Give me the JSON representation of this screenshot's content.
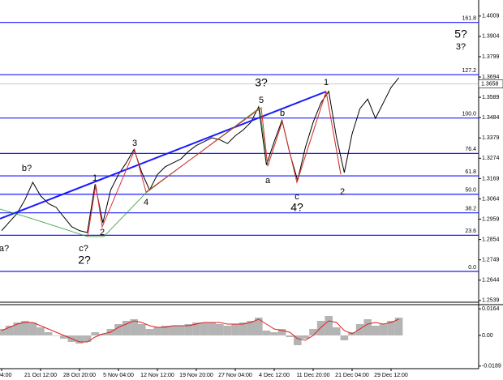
{
  "chart_data": [
    {
      "type": "line",
      "color": "#000000",
      "categories": [
        "ct 04:00",
        null,
        null,
        null,
        null,
        "21 Oct 12:00",
        null,
        null,
        null,
        null,
        "28 Oct 20:00",
        null,
        null,
        null,
        null,
        "5 Nov 04:00",
        null,
        null,
        null,
        null,
        "12 Nov 12:00",
        null,
        null,
        null,
        null,
        "19 Nov 20:00",
        null,
        null,
        null,
        null,
        "27 Nov 04:00",
        null,
        null,
        null,
        null,
        "4 Dec 12:00",
        null,
        null,
        null,
        null,
        "11 Dec 20:00",
        null,
        null,
        null,
        null,
        "21 Dec 04:00",
        null,
        null,
        null,
        null,
        "29 Dec 12:00",
        null
      ],
      "values": [
        1.29,
        1.2945,
        1.299,
        1.306,
        1.315,
        1.308,
        1.304,
        1.302,
        1.297,
        1.292,
        1.29,
        1.289,
        1.314,
        1.294,
        1.311,
        1.319,
        1.325,
        1.332,
        1.32,
        1.311,
        1.319,
        1.323,
        1.325,
        1.327,
        1.331,
        1.334,
        1.336,
        1.338,
        1.337,
        1.335,
        1.339,
        1.342,
        1.346,
        1.354,
        1.324,
        1.336,
        1.347,
        1.33,
        1.316,
        1.333,
        1.346,
        1.356,
        1.362,
        1.338,
        1.32,
        1.34,
        1.353,
        1.358,
        1.348,
        1.356,
        1.364,
        1.369
      ],
      "ylim": [
        1.253,
        1.4092
      ],
      "yticks": [
        1.4009,
        1.3904,
        1.3799,
        1.3694,
        1.3589,
        1.3484,
        1.3379,
        1.3274,
        1.3169,
        1.3064,
        1.2959,
        1.2854,
        1.2749,
        1.2644,
        1.2539
      ],
      "current_price": 1.3658,
      "levels": [
        {
          "label": "161.8",
          "value": 1.3976
        },
        {
          "label": "127.2",
          "value": 1.3706
        },
        {
          "label": "100.0",
          "value": 1.3482
        },
        {
          "label": "76.4",
          "value": 1.3299
        },
        {
          "label": "61.8",
          "value": 1.3183
        },
        {
          "label": "50.0",
          "value": 1.3088
        },
        {
          "label": "38.2",
          "value": 1.2992
        },
        {
          "label": "23.6",
          "value": 1.2876
        },
        {
          "label": "0.0",
          "value": 1.2689
        }
      ],
      "annotations": [
        {
          "text": "a?",
          "color": "#e03030"
        },
        {
          "text": "b?",
          "color": "#e03030"
        },
        {
          "text": "c?",
          "color": "#e03030"
        },
        {
          "text": "2?",
          "color": "#2a9a2a"
        },
        {
          "text": "1",
          "color": "#e03030"
        },
        {
          "text": "2",
          "color": "#e03030"
        },
        {
          "text": "3",
          "color": "#e03030"
        },
        {
          "text": "4",
          "color": "#e03030"
        },
        {
          "text": "5",
          "color": "#e03030"
        },
        {
          "text": "3?",
          "color": "#2a9a2a"
        },
        {
          "text": "b",
          "color": "#e03030"
        },
        {
          "text": "a",
          "color": "#e03030"
        },
        {
          "text": "c",
          "color": "#e03030"
        },
        {
          "text": "4?",
          "color": "#2a9a2a"
        },
        {
          "text": "1",
          "color": "#e03030"
        },
        {
          "text": "2",
          "color": "#e03030"
        },
        {
          "text": "5?",
          "color": "#2a9a2a"
        },
        {
          "text": "3?",
          "color": "#e03030"
        }
      ]
    },
    {
      "type": "bar",
      "color": "#b4b4b4",
      "values": [
        0.004,
        0.006,
        0.008,
        0.009,
        0.008,
        0.005,
        0.002,
        0.0,
        -0.002,
        -0.004,
        -0.005,
        -0.004,
        0.002,
        0.001,
        0.004,
        0.007,
        0.009,
        0.01,
        0.007,
        0.004,
        0.005,
        0.006,
        0.006,
        0.006,
        0.007,
        0.008,
        0.008,
        0.008,
        0.007,
        0.006,
        0.007,
        0.008,
        0.009,
        0.011,
        0.003,
        0.002,
        0.004,
        -0.001,
        -0.006,
        -0.002,
        0.004,
        0.009,
        0.012,
        0.005,
        -0.003,
        0.002,
        0.007,
        0.01,
        0.006,
        0.007,
        0.009,
        0.011
      ],
      "signal": {
        "color": "#e02020",
        "values": [
          0.003,
          0.005,
          0.007,
          0.008,
          0.008,
          0.006,
          0.004,
          0.002,
          0.0,
          -0.002,
          -0.004,
          -0.004,
          -0.001,
          0.001,
          0.002,
          0.005,
          0.007,
          0.009,
          0.008,
          0.006,
          0.005,
          0.005,
          0.006,
          0.006,
          0.006,
          0.007,
          0.008,
          0.008,
          0.008,
          0.007,
          0.007,
          0.007,
          0.008,
          0.01,
          0.007,
          0.004,
          0.003,
          0.002,
          -0.002,
          -0.003,
          0.0,
          0.005,
          0.009,
          0.008,
          0.003,
          0.001,
          0.004,
          0.007,
          0.008,
          0.007,
          0.008,
          0.01
        ]
      },
      "ylim": [
        -0.0205,
        0.019
      ],
      "yticks": [
        0.0164,
        {
          "value": 0,
          "label": "0.00"
        },
        -0.0189
      ]
    }
  ]
}
